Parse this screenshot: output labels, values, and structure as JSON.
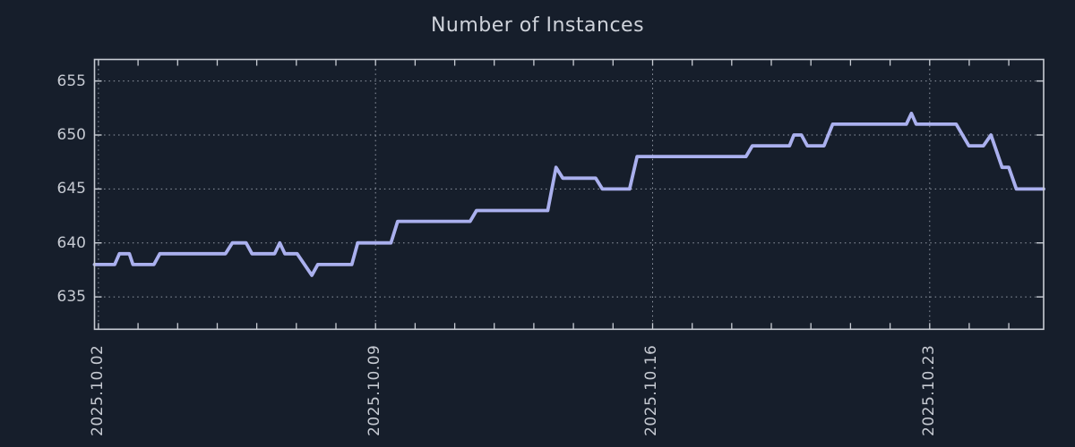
{
  "title": "Number of Instances",
  "colors": {
    "background": "#161e2b",
    "line": "#aab0ee",
    "axis": "#c8ccd4",
    "grid": "#939aa6",
    "text": "#c6cad2",
    "title_text": "#ced2da"
  },
  "chart_data": {
    "type": "line",
    "title": "Number of Instances",
    "legend": false,
    "grid": true,
    "x_axis": {
      "unit": "days_after_2025_10_02",
      "range_days": [
        -0.1,
        23.88
      ],
      "major_tick_days": [
        0,
        7,
        14,
        21
      ],
      "labels": [
        "2025.10.02",
        "2025.10.09",
        "2025.10.16",
        "2025.10.23"
      ],
      "minor_tick_interval_days": 1
    },
    "y_axis": {
      "range": [
        632,
        657
      ],
      "ticks": [
        635,
        640,
        645,
        650,
        655
      ]
    },
    "series": [
      {
        "name": "instances",
        "points": [
          [
            -0.1,
            638
          ],
          [
            0.41,
            638
          ],
          [
            0.53,
            639
          ],
          [
            0.78,
            639
          ],
          [
            0.87,
            638
          ],
          [
            1.4,
            638
          ],
          [
            1.55,
            639
          ],
          [
            3.21,
            639
          ],
          [
            3.38,
            640
          ],
          [
            3.73,
            640
          ],
          [
            3.88,
            639
          ],
          [
            4.45,
            639
          ],
          [
            4.58,
            640
          ],
          [
            4.71,
            639
          ],
          [
            5.02,
            639
          ],
          [
            5.39,
            637
          ],
          [
            5.54,
            638
          ],
          [
            6.4,
            638
          ],
          [
            6.55,
            640
          ],
          [
            7.39,
            640
          ],
          [
            7.56,
            642
          ],
          [
            9.39,
            642
          ],
          [
            9.55,
            643
          ],
          [
            11.35,
            643
          ],
          [
            11.56,
            647
          ],
          [
            11.73,
            646
          ],
          [
            12.56,
            646
          ],
          [
            12.73,
            645
          ],
          [
            13.42,
            645
          ],
          [
            13.61,
            648
          ],
          [
            16.36,
            648
          ],
          [
            16.52,
            649
          ],
          [
            17.46,
            649
          ],
          [
            17.57,
            650
          ],
          [
            17.76,
            650
          ],
          [
            17.91,
            649
          ],
          [
            18.33,
            649
          ],
          [
            18.55,
            651
          ],
          [
            20.41,
            651
          ],
          [
            20.54,
            652
          ],
          [
            20.66,
            651
          ],
          [
            21.67,
            651
          ],
          [
            21.99,
            649
          ],
          [
            22.36,
            649
          ],
          [
            22.55,
            650
          ],
          [
            22.83,
            647
          ],
          [
            23.0,
            647
          ],
          [
            23.19,
            645
          ],
          [
            23.88,
            645
          ]
        ]
      }
    ]
  }
}
